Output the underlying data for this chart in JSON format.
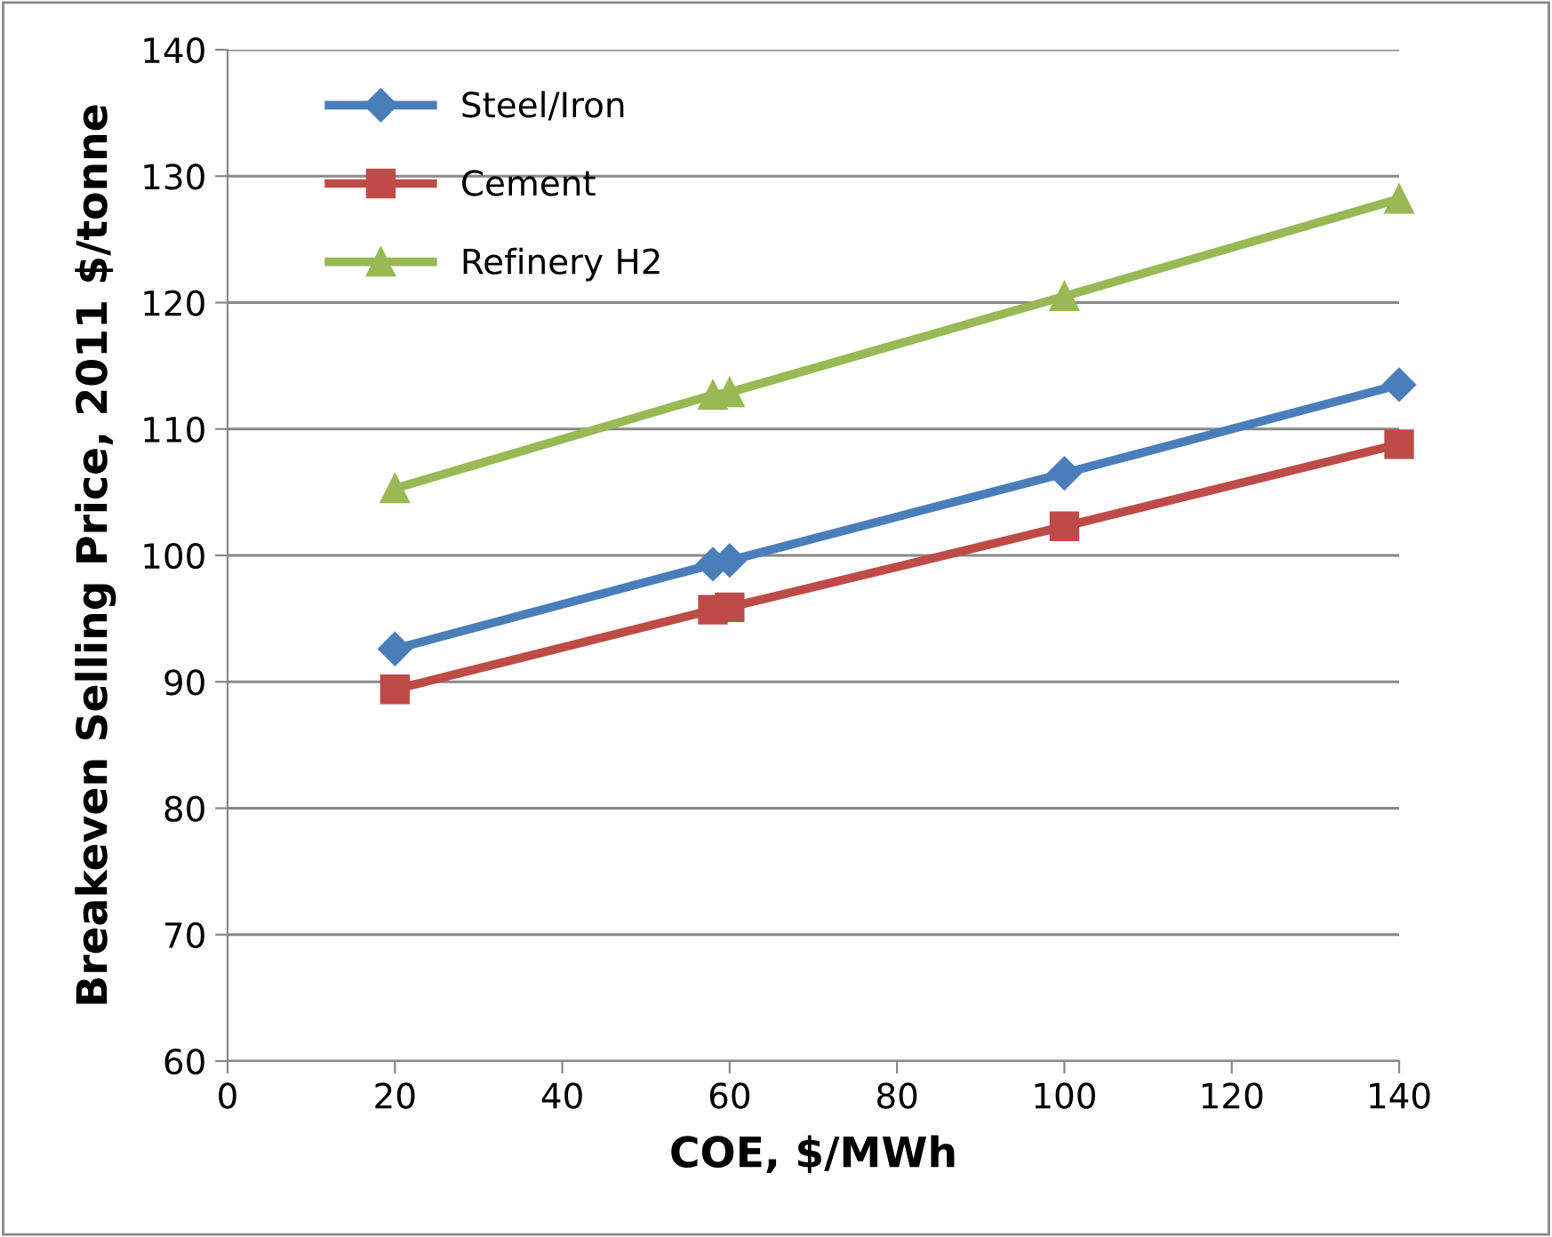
{
  "chart_data": {
    "type": "line",
    "xlabel": "COE, $/MWh",
    "ylabel": "Breakeven Selling Price, 2011 $/tonne",
    "xlim": [
      0,
      140
    ],
    "xticks": [
      0,
      20,
      40,
      60,
      80,
      100,
      120,
      140
    ],
    "ylim": [
      60,
      140
    ],
    "yticks": [
      60,
      70,
      80,
      90,
      100,
      110,
      120,
      130,
      140
    ],
    "grid": "y",
    "legend": "top left",
    "x": [
      20,
      58,
      60,
      100,
      140
    ],
    "series": [
      {
        "name": "Steel/Iron",
        "color": "#4a7ebb",
        "marker": "diamond",
        "values": [
          92.6,
          99.3,
          99.6,
          106.5,
          113.5
        ]
      },
      {
        "name": "Cement",
        "color": "#be4b48",
        "marker": "square",
        "values": [
          89.4,
          95.7,
          95.9,
          102.3,
          108.8
        ]
      },
      {
        "name": "Refinery H2",
        "color": "#98b954",
        "marker": "triangle",
        "values": [
          105.3,
          112.7,
          112.9,
          120.5,
          128.2
        ]
      }
    ]
  }
}
